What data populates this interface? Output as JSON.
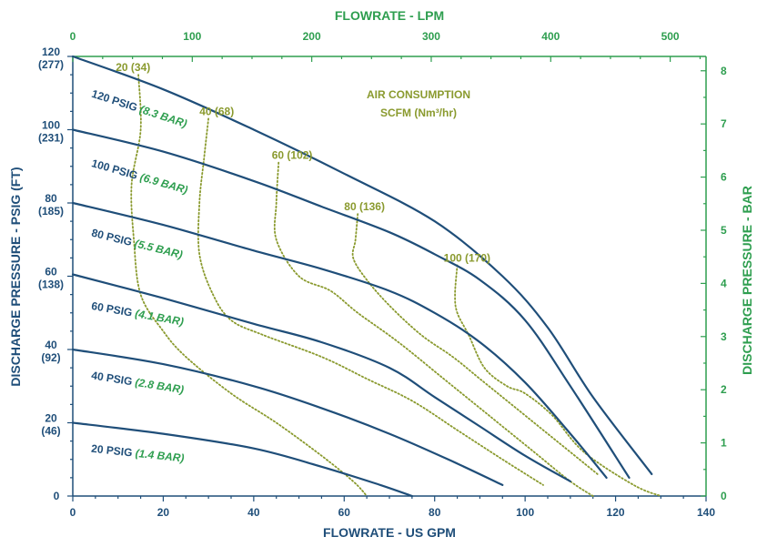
{
  "chart_data": {
    "type": "line",
    "xlabel": "FLOWRATE - US GPM",
    "ylabel": "DISCHARGE PRESSURE - PSIG (FT)",
    "x2label": "FLOWRATE - LPM",
    "y2label": "DISCHARGE PRESSURE - BAR",
    "xlim": [
      0,
      140
    ],
    "ylim": [
      0,
      120
    ],
    "x2lim": [
      0,
      530
    ],
    "y2lim": [
      0,
      8.27
    ],
    "x_ticks": [
      "0",
      "20",
      "40",
      "60",
      "80",
      "100",
      "120",
      "140"
    ],
    "y_ticks": [
      {
        "value": 0,
        "label": "0",
        "sub": ""
      },
      {
        "value": 20,
        "label": "20",
        "sub": "(46)"
      },
      {
        "value": 40,
        "label": "40",
        "sub": "(92)"
      },
      {
        "value": 60,
        "label": "60",
        "sub": "(138)"
      },
      {
        "value": 80,
        "label": "80",
        "sub": "(185)"
      },
      {
        "value": 100,
        "label": "100",
        "sub": "(231)"
      },
      {
        "value": 120,
        "label": "120",
        "sub": "(277)"
      }
    ],
    "x2_ticks": [
      "0",
      "100",
      "200",
      "300",
      "400",
      "500"
    ],
    "y2_ticks": [
      "0",
      "1",
      "2",
      "3",
      "4",
      "5",
      "6",
      "7",
      "8"
    ],
    "grid": false,
    "colors": {
      "primary": "#1f4e79",
      "secondary": "#2e9e4f",
      "air": "#8a9a2e"
    },
    "air_title": [
      "AIR CONSUMPTION",
      "SCFM (Nm³/hr)"
    ],
    "pressure_series": [
      {
        "name": "20 PSIG",
        "bar": "(1.4 BAR)",
        "points": [
          [
            0,
            20
          ],
          [
            20,
            17
          ],
          [
            40,
            13
          ],
          [
            55,
            8
          ],
          [
            68,
            3
          ],
          [
            75,
            0
          ]
        ]
      },
      {
        "name": "40 PSIG",
        "bar": "(2.8 BAR)",
        "points": [
          [
            0,
            40
          ],
          [
            20,
            36
          ],
          [
            40,
            30
          ],
          [
            55,
            24
          ],
          [
            70,
            17
          ],
          [
            83,
            10
          ],
          [
            95,
            3
          ]
        ]
      },
      {
        "name": "60 PSIG",
        "bar": "(4.1 BAR)",
        "points": [
          [
            0,
            60.5
          ],
          [
            20,
            54
          ],
          [
            40,
            47
          ],
          [
            55,
            42
          ],
          [
            70,
            35
          ],
          [
            80,
            27
          ],
          [
            90,
            19
          ],
          [
            100,
            11
          ],
          [
            110,
            4
          ]
        ]
      },
      {
        "name": "80 PSIG",
        "bar": "(5.5 BAR)",
        "points": [
          [
            0,
            80
          ],
          [
            20,
            74
          ],
          [
            40,
            67
          ],
          [
            55,
            62
          ],
          [
            70,
            56
          ],
          [
            80,
            50
          ],
          [
            90,
            42
          ],
          [
            100,
            31
          ],
          [
            110,
            17
          ],
          [
            118,
            5
          ]
        ]
      },
      {
        "name": "100 PSIG",
        "bar": "(6.9 BAR)",
        "points": [
          [
            0,
            100
          ],
          [
            20,
            94
          ],
          [
            40,
            86
          ],
          [
            55,
            79
          ],
          [
            70,
            72
          ],
          [
            80,
            66
          ],
          [
            90,
            59
          ],
          [
            100,
            48
          ],
          [
            110,
            30
          ],
          [
            123,
            5
          ]
        ]
      },
      {
        "name": "120 PSIG",
        "bar": "(8.3 BAR)",
        "points": [
          [
            0,
            120
          ],
          [
            20,
            111
          ],
          [
            40,
            100
          ],
          [
            60,
            88
          ],
          [
            80,
            75
          ],
          [
            95,
            60
          ],
          [
            105,
            46
          ],
          [
            115,
            27
          ],
          [
            128,
            6
          ]
        ]
      }
    ],
    "air_series": [
      {
        "name": "20 (34)",
        "points": [
          [
            14.5,
            115
          ],
          [
            15,
            100
          ],
          [
            13,
            85
          ],
          [
            13.5,
            70
          ],
          [
            15,
            55
          ],
          [
            20,
            45
          ],
          [
            25,
            38
          ],
          [
            35,
            28
          ],
          [
            45,
            20
          ],
          [
            55,
            11
          ],
          [
            62,
            4
          ],
          [
            65,
            0
          ]
        ]
      },
      {
        "name": "40 (68)",
        "points": [
          [
            30,
            103
          ],
          [
            29,
            92
          ],
          [
            28,
            80
          ],
          [
            28,
            66
          ],
          [
            31,
            55
          ],
          [
            35,
            48
          ],
          [
            42,
            44
          ],
          [
            55,
            38
          ],
          [
            65,
            32
          ],
          [
            75,
            26
          ],
          [
            85,
            18
          ],
          [
            95,
            10
          ],
          [
            104,
            3
          ]
        ]
      },
      {
        "name": "60 (102)",
        "points": [
          [
            45.5,
            91
          ],
          [
            45,
            80
          ],
          [
            45,
            70
          ],
          [
            50,
            60
          ],
          [
            57,
            56
          ],
          [
            63,
            50
          ],
          [
            72,
            42
          ],
          [
            82,
            32
          ],
          [
            92,
            22
          ],
          [
            102,
            12
          ],
          [
            110,
            4
          ],
          [
            115,
            0
          ]
        ]
      },
      {
        "name": "80 (136)",
        "points": [
          [
            63,
            77
          ],
          [
            62.5,
            70
          ],
          [
            62,
            65
          ],
          [
            65,
            59
          ],
          [
            70,
            52
          ],
          [
            77,
            44
          ],
          [
            84,
            38
          ],
          [
            90,
            32
          ],
          [
            98,
            24
          ],
          [
            107,
            15
          ],
          [
            116,
            6
          ]
        ]
      },
      {
        "name": "100 (170)",
        "points": [
          [
            85,
            63
          ],
          [
            84.5,
            55
          ],
          [
            85,
            50
          ],
          [
            87.5,
            44
          ],
          [
            91,
            35
          ],
          [
            96,
            30
          ],
          [
            100,
            28
          ],
          [
            106,
            22
          ],
          [
            113,
            12
          ],
          [
            124,
            3
          ],
          [
            130,
            0
          ]
        ]
      }
    ],
    "curve_labels": [
      {
        "psi": "120 PSIG",
        "bar": "(8.3 BAR)",
        "x": 4,
        "y": 109,
        "angle": 18
      },
      {
        "psi": "100 PSIG",
        "bar": "(6.9 BAR)",
        "x": 4,
        "y": 90,
        "angle": 16
      },
      {
        "psi": "80 PSIG",
        "bar": "(5.5 BAR)",
        "x": 4,
        "y": 71,
        "angle": 14
      },
      {
        "psi": "60 PSIG",
        "bar": "(4.1 BAR)",
        "x": 4,
        "y": 51,
        "angle": 10
      },
      {
        "psi": "40 PSIG",
        "bar": "(2.8 BAR)",
        "x": 4,
        "y": 32,
        "angle": 9
      },
      {
        "psi": "20 PSIG",
        "bar": "(1.4 BAR)",
        "x": 4,
        "y": 12,
        "angle": 6
      }
    ],
    "air_labels": [
      {
        "text": "20 (34)",
        "x": 9.5,
        "y": 116
      },
      {
        "text": "40 (68)",
        "x": 28,
        "y": 104
      },
      {
        "text": "60 (102)",
        "x": 44,
        "y": 92
      },
      {
        "text": "80 (136)",
        "x": 60,
        "y": 78
      },
      {
        "text": "100 (170)",
        "x": 82,
        "y": 64
      }
    ]
  }
}
